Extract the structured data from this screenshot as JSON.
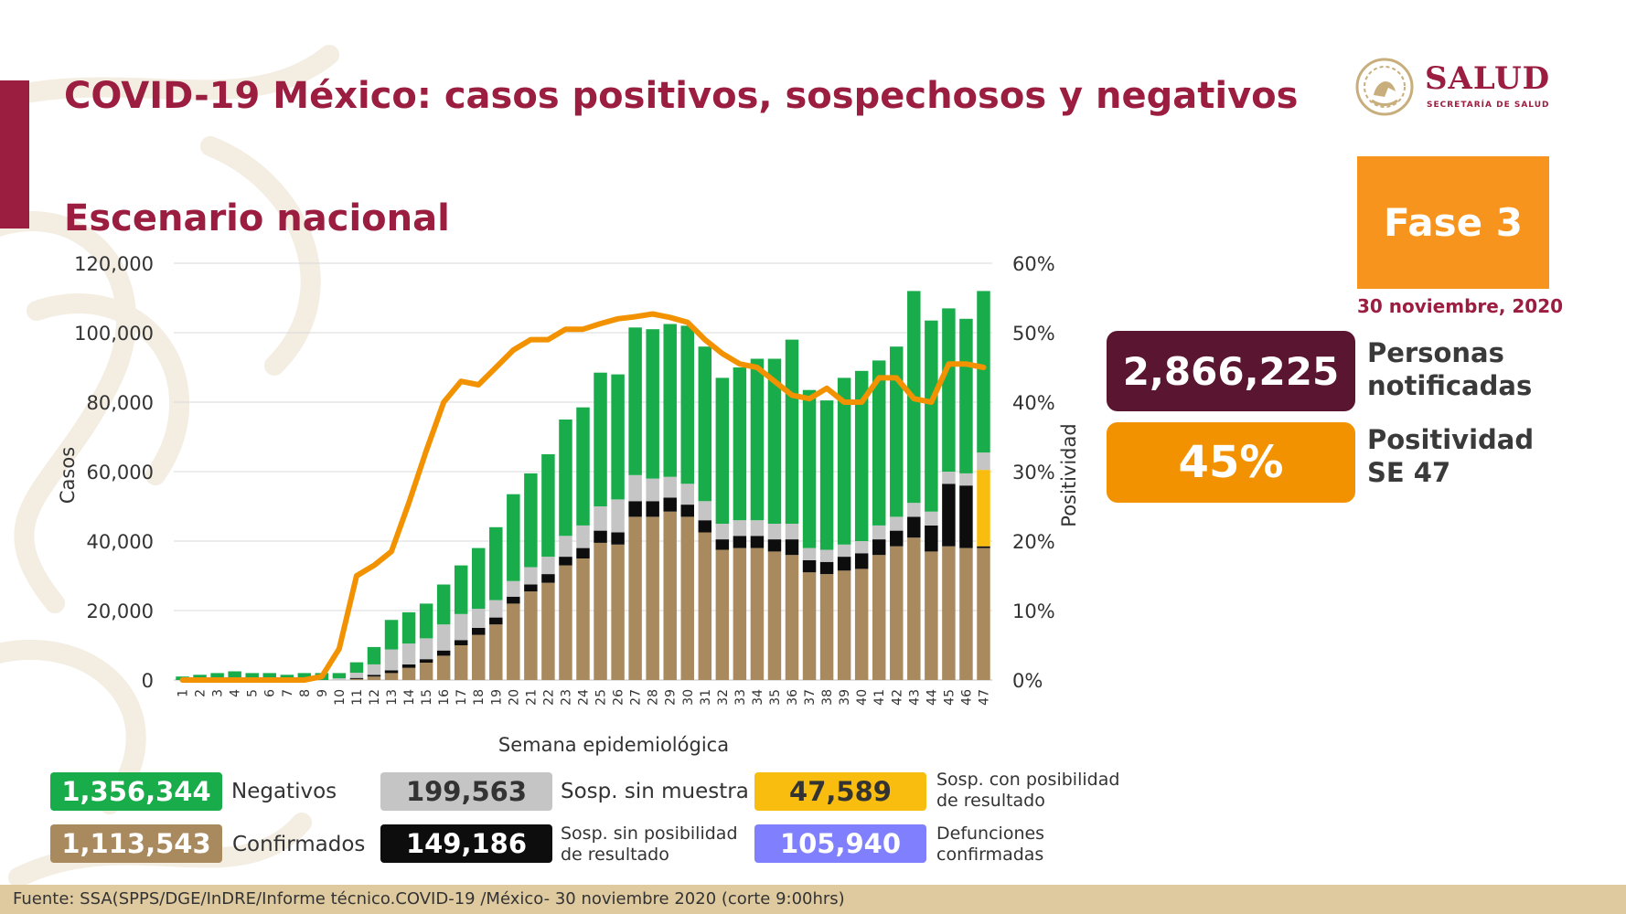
{
  "header": {
    "title": "COVID-19 México: casos positivos, sospechosos y negativos",
    "subtitle": "Escenario nacional"
  },
  "logo": {
    "word": "SALUD",
    "sub": "SECRETARÍA DE SALUD"
  },
  "phase": {
    "label": "Fase 3",
    "date": "30 noviembre, 2020"
  },
  "stats": {
    "persons_value": "2,866,225",
    "persons_label_1": "Personas",
    "persons_label_2": "notificadas",
    "positivity_value": "45%",
    "positivity_label_1": "Positividad",
    "positivity_label_2": "SE 47"
  },
  "legend": {
    "negativos_value": "1,356,344",
    "negativos_label": "Negativos",
    "confirmados_value": "1,113,543",
    "confirmados_label": "Confirmados",
    "sin_muestra_value": "199,563",
    "sin_muestra_label": "Sosp. sin muestra",
    "sin_posibilidad_value": "149,186",
    "sin_posibilidad_label_1": "Sosp. sin posibilidad",
    "sin_posibilidad_label_2": "de resultado",
    "con_posibilidad_value": "47,589",
    "con_posibilidad_label_1": "Sosp. con posibilidad",
    "con_posibilidad_label_2": "de resultado",
    "defunciones_value": "105,940",
    "defunciones_label_1": "Defunciones",
    "defunciones_label_2": "confirmadas"
  },
  "colors": {
    "brand": "#9b1d40",
    "confirmados": "#a98a5f",
    "sin_posibilidad": "#0d0d0d",
    "sin_muestra": "#c5c5c5",
    "negativos": "#18ac4b",
    "con_posibilidad": "#f8bd0e",
    "defunciones": "#8080ff",
    "positividad": "#f39200",
    "persons_box": "#5a1530"
  },
  "footer": {
    "source": "Fuente: SSA(SPPS/DGE/InDRE/Informe técnico.COVID-19 /México- 30 noviembre 2020 (corte 9:00hrs)"
  },
  "chart_data": {
    "type": "bar",
    "stacked": true,
    "xlabel": "Semana epidemiológica",
    "ylabel": "Casos",
    "y2label": "Positividad",
    "ylim": [
      0,
      120000
    ],
    "y2lim": [
      0,
      60
    ],
    "yticks": [
      "0",
      "20,000",
      "40,000",
      "60,000",
      "80,000",
      "100,000",
      "120,000"
    ],
    "y2ticks": [
      "0%",
      "10%",
      "20%",
      "30%",
      "40%",
      "50%",
      "60%"
    ],
    "categories": [
      "1",
      "2",
      "3",
      "4",
      "5",
      "6",
      "7",
      "8",
      "9",
      "10",
      "11",
      "12",
      "13",
      "14",
      "15",
      "16",
      "17",
      "18",
      "19",
      "20",
      "21",
      "22",
      "23",
      "24",
      "25",
      "26",
      "27",
      "28",
      "29",
      "30",
      "31",
      "32",
      "33",
      "34",
      "35",
      "36",
      "37",
      "38",
      "39",
      "40",
      "41",
      "42",
      "43",
      "44",
      "45",
      "46",
      "47"
    ],
    "series": [
      {
        "name": "Confirmados",
        "color": "#a98a5f",
        "values": [
          0,
          0,
          0,
          0,
          0,
          0,
          0,
          0,
          0,
          0,
          300,
          1000,
          2000,
          3500,
          5000,
          7000,
          10000,
          13000,
          16000,
          22000,
          25500,
          28000,
          33000,
          35000,
          39500,
          39000,
          47000,
          47000,
          48500,
          47000,
          42500,
          37500,
          38000,
          38000,
          37000,
          36000,
          31000,
          30500,
          31500,
          32000,
          36000,
          38500,
          41000,
          37000,
          38500,
          38000,
          38000
        ]
      },
      {
        "name": "Sosp. sin posibilidad de resultado",
        "color": "#0d0d0d",
        "values": [
          0,
          0,
          0,
          0,
          0,
          0,
          0,
          0,
          0,
          0,
          300,
          500,
          800,
          1000,
          1000,
          1500,
          1500,
          2000,
          2000,
          2000,
          2000,
          2500,
          2500,
          3000,
          3500,
          3500,
          4500,
          4500,
          4000,
          3500,
          3500,
          3000,
          3500,
          3500,
          3500,
          4500,
          3500,
          3500,
          4000,
          4500,
          4500,
          4500,
          6000,
          7500,
          18000,
          18000,
          500
        ]
      },
      {
        "name": "Sosp. con posibilidad de resultado",
        "color": "#f8bd0e",
        "values": [
          0,
          0,
          0,
          0,
          0,
          0,
          0,
          0,
          0,
          0,
          0,
          0,
          0,
          0,
          0,
          0,
          0,
          0,
          0,
          0,
          0,
          0,
          0,
          0,
          0,
          0,
          0,
          0,
          0,
          0,
          0,
          0,
          0,
          0,
          0,
          0,
          0,
          0,
          0,
          0,
          0,
          0,
          0,
          0,
          0,
          0,
          22000
        ]
      },
      {
        "name": "Sosp. sin muestra",
        "color": "#c5c5c5",
        "values": [
          0,
          0,
          0,
          0,
          0,
          0,
          0,
          0,
          0,
          500,
          1500,
          3000,
          6000,
          6000,
          6000,
          7500,
          7500,
          5500,
          5000,
          4500,
          5000,
          5000,
          6000,
          6500,
          7000,
          9500,
          7500,
          6500,
          6000,
          6000,
          5500,
          4500,
          4500,
          4500,
          4500,
          4500,
          3500,
          3500,
          3500,
          3500,
          4000,
          4000,
          4000,
          4000,
          3500,
          3500,
          5000
        ]
      },
      {
        "name": "Negativos",
        "color": "#18ac4b",
        "values": [
          1000,
          1500,
          2000,
          2500,
          2000,
          2000,
          1500,
          2000,
          2000,
          1500,
          3000,
          5000,
          8500,
          9000,
          10000,
          11500,
          14000,
          17500,
          21000,
          25000,
          27000,
          29500,
          33500,
          34000,
          38500,
          36000,
          42500,
          43000,
          44000,
          45500,
          44500,
          42000,
          44000,
          46500,
          47500,
          53000,
          45500,
          43000,
          48000,
          49000,
          47500,
          49000,
          61000,
          55000,
          47000,
          44500,
          46500
        ]
      }
    ],
    "line": {
      "name": "Positividad",
      "color": "#f39200",
      "axis": "right",
      "values": [
        0,
        0,
        0,
        0,
        0,
        0,
        0,
        0,
        0.5,
        4.5,
        15,
        16.5,
        18.5,
        25.5,
        33,
        40,
        43,
        42.5,
        45,
        47.5,
        49,
        49,
        50.5,
        50.5,
        51.3,
        52,
        52.3,
        52.7,
        52.2,
        51.5,
        49,
        47,
        45.5,
        45,
        43,
        41,
        40.5,
        42,
        40,
        40,
        43.5,
        43.5,
        40.5,
        40,
        45.5,
        45.5,
        45
      ]
    }
  }
}
